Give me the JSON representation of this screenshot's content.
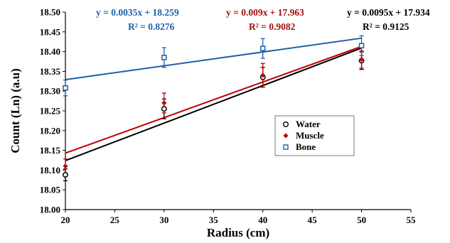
{
  "chart_data": {
    "type": "scatter",
    "xlabel": "Radius (cm)",
    "ylabel": "Count (Ln) (a.u)",
    "xlim": [
      20,
      55
    ],
    "ylim": [
      18.0,
      18.5
    ],
    "xticks": [
      "20",
      "25",
      "30",
      "35",
      "40",
      "45",
      "50",
      "55"
    ],
    "yticks": [
      "18.00",
      "18.05",
      "18.10",
      "18.15",
      "18.20",
      "18.25",
      "18.30",
      "18.35",
      "18.40",
      "18.45",
      "18.50"
    ],
    "grid": false,
    "legend": "center-right",
    "series": [
      {
        "name": "Water",
        "color": "#000000",
        "marker": "circle",
        "x": [
          20,
          30,
          40,
          50
        ],
        "y": [
          18.088,
          18.255,
          18.335,
          18.377
        ],
        "err": [
          0.015,
          0.025,
          0.025,
          0.022
        ],
        "trendline": {
          "slope": 0.0095,
          "intercept": 17.934,
          "equation": "y = 0.0095x + 17.934",
          "r2": "R² = 0.9125"
        }
      },
      {
        "name": "Muscle",
        "color": "#c00000",
        "marker": "diamond",
        "x": [
          20,
          30,
          40,
          50
        ],
        "y": [
          18.11,
          18.27,
          18.34,
          18.38
        ],
        "err": [
          0.018,
          0.025,
          0.03,
          0.022
        ],
        "trendline": {
          "slope": 0.009,
          "intercept": 17.963,
          "equation": "y = 0.009x + 17.963",
          "r2": "R² = 0.9082"
        }
      },
      {
        "name": "Bone",
        "color": "#1f5fa8",
        "marker": "square",
        "x": [
          20,
          30,
          40,
          50
        ],
        "y": [
          18.308,
          18.385,
          18.408,
          18.415
        ],
        "err": [
          0.02,
          0.025,
          0.025,
          0.025
        ],
        "trendline": {
          "slope": 0.0035,
          "intercept": 18.259,
          "equation": "y = 0.0035x + 18.259",
          "r2": "R² = 0.8276"
        }
      }
    ]
  }
}
